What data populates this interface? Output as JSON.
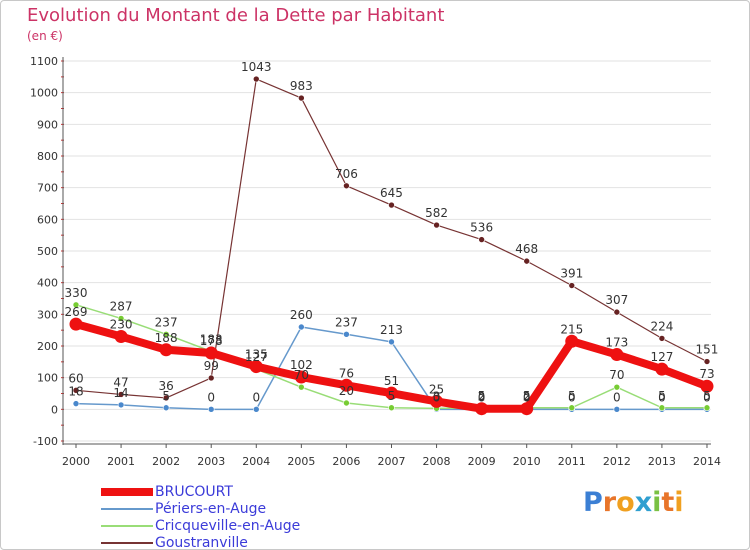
{
  "title": "Evolution du Montant de la Dette par Habitant",
  "subtitle": "(en €)",
  "chart_data": {
    "type": "line",
    "title": "Evolution du Montant de la Dette par Habitant",
    "ylabel": "(en €)",
    "xlabel": "",
    "x": [
      "2000",
      "2001",
      "2002",
      "2003",
      "2004",
      "2005",
      "2006",
      "2007",
      "2008",
      "2009",
      "2010",
      "2011",
      "2012",
      "2013",
      "2014"
    ],
    "ylim": [
      -100,
      1100
    ],
    "yticks": [
      "-100",
      "0",
      "100",
      "200",
      "300",
      "400",
      "500",
      "600",
      "700",
      "800",
      "900",
      "1000",
      "1100"
    ],
    "series": [
      {
        "name": "BRUCOURT",
        "color": "#ee1111",
        "width": 8,
        "marker_color": "#ee1111",
        "values": [
          269,
          230,
          188,
          178,
          135,
          102,
          76,
          51,
          25,
          2,
          2,
          215,
          173,
          127,
          73
        ]
      },
      {
        "name": "Périers-en-Auge",
        "color": "#6699cc",
        "width": 1.5,
        "marker_color": "#4a88cc",
        "values": [
          18,
          14,
          5,
          0,
          0,
          260,
          237,
          213,
          0,
          0,
          0,
          0,
          0,
          0,
          0
        ]
      },
      {
        "name": "Cricqueville-en-Auge",
        "color": "#99dd77",
        "width": 1.5,
        "marker_color": "#77cc33",
        "values": [
          330,
          287,
          237,
          183,
          127,
          70,
          20,
          5,
          3,
          5,
          5,
          5,
          70,
          5,
          5
        ]
      },
      {
        "name": "Goustranville",
        "color": "#773333",
        "width": 1.2,
        "marker_color": "#662222",
        "values": [
          60,
          47,
          36,
          99,
          1043,
          983,
          706,
          645,
          582,
          536,
          468,
          391,
          307,
          224,
          151
        ]
      }
    ],
    "grid": true,
    "legend": "bottom-left"
  },
  "logo": {
    "letters": [
      "P",
      "r",
      "o",
      "x",
      "i",
      "t",
      "i"
    ],
    "colors": [
      "#3b7fd4",
      "#e8752a",
      "#f0a020",
      "#2f9fd0",
      "#7ac143",
      "#e8752a",
      "#f0a020"
    ]
  }
}
